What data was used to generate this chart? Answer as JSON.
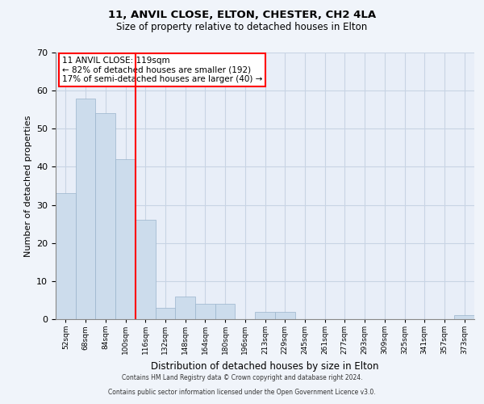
{
  "title1": "11, ANVIL CLOSE, ELTON, CHESTER, CH2 4LA",
  "title2": "Size of property relative to detached houses in Elton",
  "xlabel": "Distribution of detached houses by size in Elton",
  "ylabel": "Number of detached properties",
  "bar_labels": [
    "52sqm",
    "68sqm",
    "84sqm",
    "100sqm",
    "116sqm",
    "132sqm",
    "148sqm",
    "164sqm",
    "180sqm",
    "196sqm",
    "213sqm",
    "229sqm",
    "245sqm",
    "261sqm",
    "277sqm",
    "293sqm",
    "309sqm",
    "325sqm",
    "341sqm",
    "357sqm",
    "373sqm"
  ],
  "bar_values": [
    33,
    58,
    54,
    42,
    26,
    3,
    6,
    4,
    4,
    0,
    2,
    2,
    0,
    0,
    0,
    0,
    0,
    0,
    0,
    0,
    1
  ],
  "bar_color": "#ccdcec",
  "bar_edge_color": "#9ab4cc",
  "red_line_x": 3.5,
  "ylim": [
    0,
    70
  ],
  "yticks": [
    0,
    10,
    20,
    30,
    40,
    50,
    60,
    70
  ],
  "annotation_title": "11 ANVIL CLOSE: 119sqm",
  "annotation_line1": "← 82% of detached houses are smaller (192)",
  "annotation_line2": "17% of semi-detached houses are larger (40) →",
  "footer1": "Contains HM Land Registry data © Crown copyright and database right 2024.",
  "footer2": "Contains public sector information licensed under the Open Government Licence v3.0.",
  "background_color": "#f0f4fa",
  "plot_bg_color": "#e8eef8",
  "grid_color": "#c8d4e4"
}
